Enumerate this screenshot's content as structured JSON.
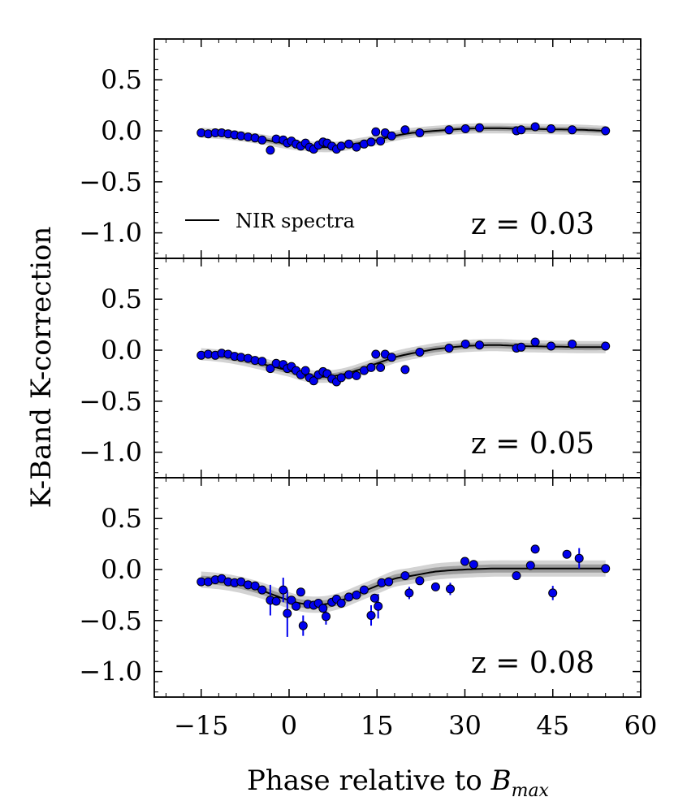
{
  "chart_data": {
    "type": "scatter",
    "ylabel": "K-Band K-correction",
    "xlabel": "Phase relative to B_max",
    "xlabel_main": "Phase relative to ",
    "xlabel_symbol": "B",
    "xlabel_subscript": "max",
    "xlim": [
      -23,
      60
    ],
    "ylim": [
      -1.25,
      0.9
    ],
    "xticks": [
      -15,
      0,
      15,
      30,
      45,
      60
    ],
    "xtick_labels": [
      "−15",
      "0",
      "15",
      "30",
      "45",
      "60"
    ],
    "yticks": [
      0.5,
      0.0,
      -0.5,
      -1.0
    ],
    "ytick_labels": [
      "0.5",
      "0.0",
      "−0.5",
      "−1.0"
    ],
    "legend": {
      "label": "NIR spectra",
      "location": "lower-left"
    },
    "colors": {
      "points": "#0000ee",
      "edge": "#000000",
      "model": "#000000",
      "band_inner": "#8c8c8c",
      "band_outer": "#c4c4c4"
    },
    "panels": [
      {
        "annotation": "z = 0.03",
        "model": [
          [
            -15,
            -0.02
          ],
          [
            -10,
            -0.04
          ],
          [
            -5,
            -0.08
          ],
          [
            0,
            -0.13
          ],
          [
            3,
            -0.15
          ],
          [
            6,
            -0.16
          ],
          [
            9,
            -0.15
          ],
          [
            12,
            -0.12
          ],
          [
            15,
            -0.09
          ],
          [
            18,
            -0.05
          ],
          [
            21,
            -0.02
          ],
          [
            25,
            0.0
          ],
          [
            30,
            0.02
          ],
          [
            35,
            0.025
          ],
          [
            40,
            0.02
          ],
          [
            45,
            0.015
          ],
          [
            50,
            0.01
          ],
          [
            54,
            0.0
          ]
        ],
        "band_inner": 0.025,
        "band_outer": 0.05,
        "points": [
          {
            "x": -15,
            "y": -0.02
          },
          {
            "x": -13.8,
            "y": -0.03
          },
          {
            "x": -12.6,
            "y": -0.02
          },
          {
            "x": -11.5,
            "y": -0.02
          },
          {
            "x": -10.4,
            "y": -0.03
          },
          {
            "x": -9.3,
            "y": -0.04
          },
          {
            "x": -8.2,
            "y": -0.05
          },
          {
            "x": -7,
            "y": -0.06
          },
          {
            "x": -5.8,
            "y": -0.07
          },
          {
            "x": -4.6,
            "y": -0.09
          },
          {
            "x": -3.2,
            "y": -0.19
          },
          {
            "x": -2.2,
            "y": -0.08
          },
          {
            "x": -1,
            "y": -0.09
          },
          {
            "x": -0.3,
            "y": -0.12
          },
          {
            "x": 0.4,
            "y": -0.1
          },
          {
            "x": 1.2,
            "y": -0.13
          },
          {
            "x": 2,
            "y": -0.15
          },
          {
            "x": 2.8,
            "y": -0.12
          },
          {
            "x": 3.5,
            "y": -0.16
          },
          {
            "x": 4.2,
            "y": -0.18
          },
          {
            "x": 5,
            "y": -0.14
          },
          {
            "x": 5.8,
            "y": -0.11
          },
          {
            "x": 6.5,
            "y": -0.12
          },
          {
            "x": 7.3,
            "y": -0.15
          },
          {
            "x": 8.1,
            "y": -0.18
          },
          {
            "x": 8.9,
            "y": -0.15
          },
          {
            "x": 10.2,
            "y": -0.13
          },
          {
            "x": 11.5,
            "y": -0.16
          },
          {
            "x": 12.8,
            "y": -0.13
          },
          {
            "x": 14,
            "y": -0.11
          },
          {
            "x": 14.8,
            "y": -0.01
          },
          {
            "x": 15.6,
            "y": -0.1
          },
          {
            "x": 16.4,
            "y": -0.02
          },
          {
            "x": 17.5,
            "y": -0.05
          },
          {
            "x": 19.8,
            "y": 0.01
          },
          {
            "x": 22.3,
            "y": -0.02
          },
          {
            "x": 27.3,
            "y": 0.01
          },
          {
            "x": 30.1,
            "y": 0.02
          },
          {
            "x": 32.5,
            "y": 0.03
          },
          {
            "x": 38.8,
            "y": 0.0
          },
          {
            "x": 39.6,
            "y": 0.01
          },
          {
            "x": 42,
            "y": 0.04
          },
          {
            "x": 44.7,
            "y": 0.02
          },
          {
            "x": 48.3,
            "y": 0.01
          },
          {
            "x": 54,
            "y": 0.0
          }
        ]
      },
      {
        "annotation": "z = 0.05",
        "model": [
          [
            -15,
            -0.04
          ],
          [
            -10,
            -0.07
          ],
          [
            -5,
            -0.13
          ],
          [
            0,
            -0.2
          ],
          [
            3,
            -0.25
          ],
          [
            6,
            -0.26
          ],
          [
            9,
            -0.24
          ],
          [
            12,
            -0.19
          ],
          [
            15,
            -0.13
          ],
          [
            18,
            -0.07
          ],
          [
            21,
            -0.03
          ],
          [
            25,
            0.01
          ],
          [
            30,
            0.04
          ],
          [
            35,
            0.05
          ],
          [
            40,
            0.04
          ],
          [
            45,
            0.035
          ],
          [
            50,
            0.03
          ],
          [
            54,
            0.03
          ]
        ],
        "band_inner": 0.03,
        "band_outer": 0.06,
        "points": [
          {
            "x": -15,
            "y": -0.05
          },
          {
            "x": -13.8,
            "y": -0.04
          },
          {
            "x": -12.6,
            "y": -0.05
          },
          {
            "x": -11.5,
            "y": -0.03
          },
          {
            "x": -10.4,
            "y": -0.04
          },
          {
            "x": -9.3,
            "y": -0.06
          },
          {
            "x": -8.2,
            "y": -0.07
          },
          {
            "x": -7,
            "y": -0.08
          },
          {
            "x": -5.8,
            "y": -0.1
          },
          {
            "x": -4.6,
            "y": -0.11
          },
          {
            "x": -3.2,
            "y": -0.18
          },
          {
            "x": -2.2,
            "y": -0.13
          },
          {
            "x": -1,
            "y": -0.14
          },
          {
            "x": -0.3,
            "y": -0.18
          },
          {
            "x": 0.4,
            "y": -0.16
          },
          {
            "x": 1.2,
            "y": -0.2
          },
          {
            "x": 2,
            "y": -0.24
          },
          {
            "x": 2.8,
            "y": -0.2
          },
          {
            "x": 3.5,
            "y": -0.27
          },
          {
            "x": 4.2,
            "y": -0.3
          },
          {
            "x": 5,
            "y": -0.24
          },
          {
            "x": 5.8,
            "y": -0.21
          },
          {
            "x": 6.5,
            "y": -0.23
          },
          {
            "x": 7.3,
            "y": -0.28
          },
          {
            "x": 8.1,
            "y": -0.31
          },
          {
            "x": 8.9,
            "y": -0.27
          },
          {
            "x": 10.2,
            "y": -0.24
          },
          {
            "x": 11.5,
            "y": -0.25
          },
          {
            "x": 12.8,
            "y": -0.2
          },
          {
            "x": 14,
            "y": -0.17
          },
          {
            "x": 14.8,
            "y": -0.04
          },
          {
            "x": 15.6,
            "y": -0.17
          },
          {
            "x": 16.4,
            "y": -0.04
          },
          {
            "x": 17.5,
            "y": -0.07
          },
          {
            "x": 19.8,
            "y": -0.19
          },
          {
            "x": 22.3,
            "y": -0.02
          },
          {
            "x": 27.3,
            "y": 0.02
          },
          {
            "x": 30.1,
            "y": 0.06
          },
          {
            "x": 32.5,
            "y": 0.05
          },
          {
            "x": 38.8,
            "y": 0.02
          },
          {
            "x": 39.6,
            "y": 0.03
          },
          {
            "x": 42,
            "y": 0.08
          },
          {
            "x": 44.7,
            "y": 0.04
          },
          {
            "x": 48.3,
            "y": 0.06
          },
          {
            "x": 54,
            "y": 0.04
          }
        ]
      },
      {
        "annotation": "z = 0.08",
        "model": [
          [
            -15,
            -0.1
          ],
          [
            -10,
            -0.13
          ],
          [
            -5,
            -0.2
          ],
          [
            0,
            -0.3
          ],
          [
            3,
            -0.34
          ],
          [
            6,
            -0.34
          ],
          [
            9,
            -0.3
          ],
          [
            12,
            -0.23
          ],
          [
            15,
            -0.16
          ],
          [
            18,
            -0.09
          ],
          [
            21,
            -0.06
          ],
          [
            25,
            -0.02
          ],
          [
            30,
            0.0
          ],
          [
            35,
            0.01
          ],
          [
            40,
            0.01
          ],
          [
            45,
            0.01
          ],
          [
            50,
            0.01
          ],
          [
            54,
            0.01
          ]
        ],
        "band_inner": 0.04,
        "band_outer": 0.08,
        "points": [
          {
            "x": -15,
            "y": -0.12
          },
          {
            "x": -13.8,
            "y": -0.12
          },
          {
            "x": -12.6,
            "y": -0.1
          },
          {
            "x": -11.5,
            "y": -0.09
          },
          {
            "x": -10.4,
            "y": -0.12
          },
          {
            "x": -9.3,
            "y": -0.13
          },
          {
            "x": -8.2,
            "y": -0.12
          },
          {
            "x": -7,
            "y": -0.15
          },
          {
            "x": -5.8,
            "y": -0.16
          },
          {
            "x": -4.6,
            "y": -0.2
          },
          {
            "x": -3.2,
            "y": -0.3
          },
          {
            "x": -2.2,
            "y": -0.31
          },
          {
            "x": -1,
            "y": -0.2
          },
          {
            "x": -0.3,
            "y": -0.43
          },
          {
            "x": 0.4,
            "y": -0.3
          },
          {
            "x": 1.2,
            "y": -0.36
          },
          {
            "x": 2,
            "y": -0.22
          },
          {
            "x": 2.4,
            "y": -0.55
          },
          {
            "x": 3.2,
            "y": -0.34
          },
          {
            "x": 4.2,
            "y": -0.35
          },
          {
            "x": 5,
            "y": -0.33
          },
          {
            "x": 5.8,
            "y": -0.38
          },
          {
            "x": 6.3,
            "y": -0.46
          },
          {
            "x": 7.3,
            "y": -0.32
          },
          {
            "x": 8.1,
            "y": -0.29
          },
          {
            "x": 8.9,
            "y": -0.33
          },
          {
            "x": 10.2,
            "y": -0.27
          },
          {
            "x": 11.5,
            "y": -0.25
          },
          {
            "x": 12.8,
            "y": -0.2
          },
          {
            "x": 14,
            "y": -0.45
          },
          {
            "x": 14.6,
            "y": -0.28
          },
          {
            "x": 15.2,
            "y": -0.36
          },
          {
            "x": 15.8,
            "y": -0.13
          },
          {
            "x": 17,
            "y": -0.12
          },
          {
            "x": 19.8,
            "y": -0.06
          },
          {
            "x": 20.5,
            "y": -0.23
          },
          {
            "x": 22.3,
            "y": -0.11
          },
          {
            "x": 25,
            "y": -0.17
          },
          {
            "x": 27.5,
            "y": -0.19
          },
          {
            "x": 30,
            "y": 0.08
          },
          {
            "x": 31.5,
            "y": 0.05
          },
          {
            "x": 38.8,
            "y": -0.06
          },
          {
            "x": 41.2,
            "y": 0.04
          },
          {
            "x": 42,
            "y": 0.2
          },
          {
            "x": 45,
            "y": -0.23
          },
          {
            "x": 47.4,
            "y": 0.15
          },
          {
            "x": 49.5,
            "y": 0.11
          },
          {
            "x": 54,
            "y": 0.01
          }
        ],
        "errorbars": [
          {
            "x": -3.2,
            "y": -0.3,
            "err": 0.15
          },
          {
            "x": -1,
            "y": -0.2,
            "err": 0.12
          },
          {
            "x": -0.3,
            "y": -0.43,
            "err": 0.23
          },
          {
            "x": 2.4,
            "y": -0.55,
            "err": 0.1
          },
          {
            "x": 6.3,
            "y": -0.46,
            "err": 0.08
          },
          {
            "x": 14,
            "y": -0.45,
            "err": 0.1
          },
          {
            "x": 15.2,
            "y": -0.36,
            "err": 0.12
          },
          {
            "x": 20.5,
            "y": -0.23,
            "err": 0.06
          },
          {
            "x": 27.5,
            "y": -0.19,
            "err": 0.06
          },
          {
            "x": 45,
            "y": -0.23,
            "err": 0.07
          },
          {
            "x": 49.5,
            "y": 0.11,
            "err": 0.1
          }
        ]
      }
    ]
  }
}
